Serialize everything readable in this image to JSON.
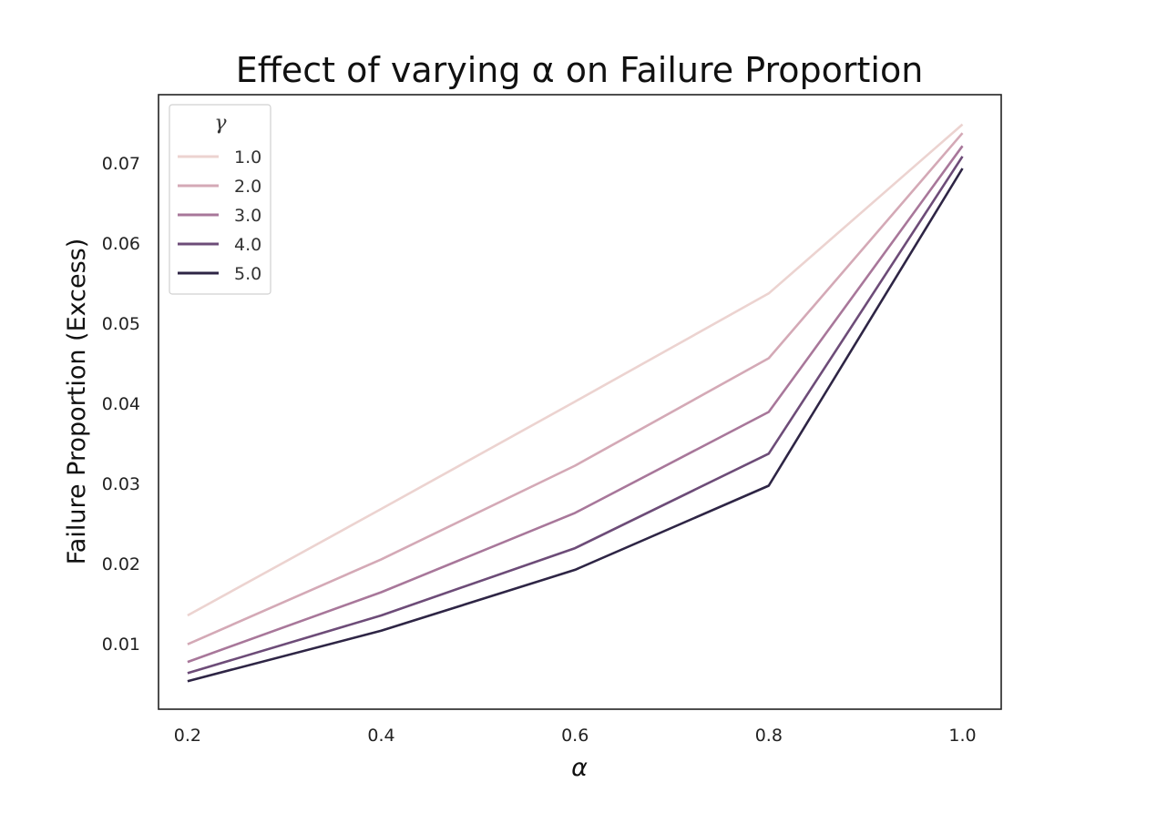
{
  "chart_data": {
    "type": "line",
    "title": "Effect of varying α on Failure Proportion",
    "xlabel": "α",
    "ylabel": "Failure Proportion (Excess)",
    "x": [
      0.2,
      0.4,
      0.6,
      0.8,
      1.0
    ],
    "x_tick_labels": [
      "0.2",
      "0.4",
      "0.6",
      "0.8",
      "1.0"
    ],
    "y_ticks": [
      0.01,
      0.02,
      0.03,
      0.04,
      0.05,
      0.06,
      0.07
    ],
    "y_tick_labels": [
      "0.01",
      "0.02",
      "0.03",
      "0.04",
      "0.05",
      "0.06",
      "0.07"
    ],
    "xlim": [
      0.17,
      1.04
    ],
    "ylim": [
      0.0018,
      0.0785
    ],
    "grid": false,
    "legend": {
      "title": "γ",
      "placement": "top-left"
    },
    "series": [
      {
        "name": "1.0",
        "color": "#ecd3d0",
        "values": [
          0.0135,
          0.0268,
          0.0402,
          0.0537,
          0.0748
        ]
      },
      {
        "name": "2.0",
        "color": "#d4a9b6",
        "values": [
          0.0099,
          0.0205,
          0.0322,
          0.0456,
          0.0737
        ]
      },
      {
        "name": "3.0",
        "color": "#a8779a",
        "values": [
          0.0077,
          0.0164,
          0.0263,
          0.0389,
          0.0721
        ]
      },
      {
        "name": "4.0",
        "color": "#6d4c78",
        "values": [
          0.0063,
          0.0135,
          0.0219,
          0.0337,
          0.0708
        ]
      },
      {
        "name": "5.0",
        "color": "#2e2545",
        "values": [
          0.0053,
          0.0116,
          0.0192,
          0.0297,
          0.0693
        ]
      }
    ]
  }
}
